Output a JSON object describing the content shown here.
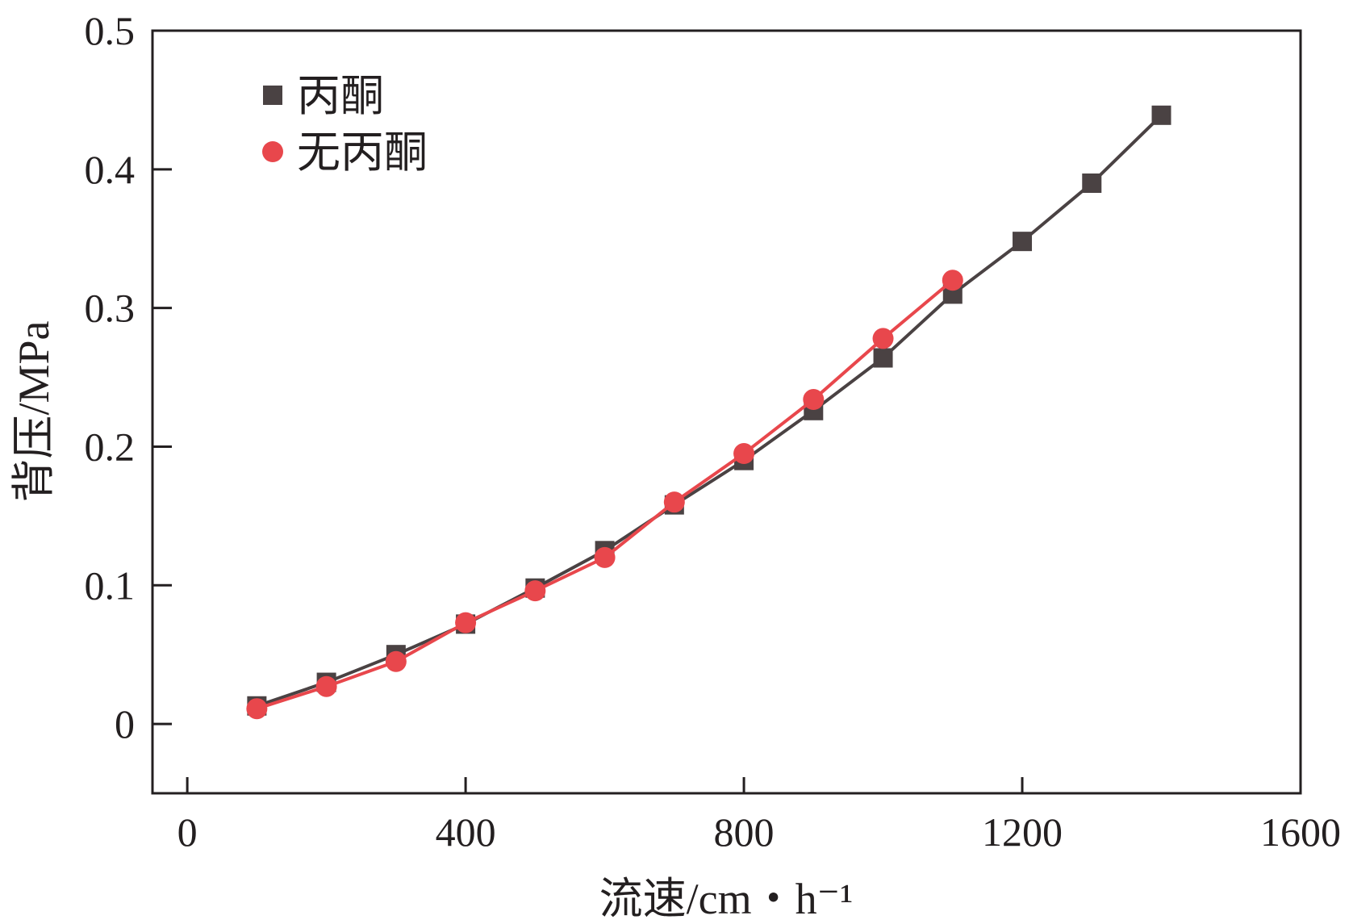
{
  "chart_data": {
    "type": "line",
    "xlabel": "流速/cm・h⁻¹",
    "ylabel": "背压/MPa",
    "xlim": [
      -50,
      1600
    ],
    "ylim": [
      -0.05,
      0.5
    ],
    "xticks": [
      0,
      400,
      800,
      1200,
      1600
    ],
    "yticks": [
      0,
      0.1,
      0.2,
      0.3,
      0.4,
      0.5
    ],
    "xtick_labels": [
      "0",
      "400",
      "800",
      "1200",
      "1600"
    ],
    "ytick_labels": [
      "0",
      "0.1",
      "0.2",
      "0.3",
      "0.4",
      "0.5"
    ],
    "grid": false,
    "legend_position": "top-left",
    "series": [
      {
        "name": "丙酮",
        "marker": "square",
        "color": "#4a4243",
        "x": [
          100,
          200,
          300,
          400,
          500,
          600,
          700,
          800,
          900,
          1000,
          1100,
          1200,
          1300,
          1400
        ],
        "y": [
          0.013,
          0.03,
          0.05,
          0.072,
          0.098,
          0.125,
          0.158,
          0.19,
          0.226,
          0.264,
          0.31,
          0.348,
          0.39,
          0.439
        ]
      },
      {
        "name": "无丙酮",
        "marker": "circle",
        "color": "#e8474c",
        "x": [
          100,
          200,
          300,
          400,
          500,
          600,
          700,
          800,
          900,
          1000,
          1100
        ],
        "y": [
          0.011,
          0.027,
          0.045,
          0.073,
          0.096,
          0.12,
          0.16,
          0.195,
          0.234,
          0.278,
          0.32
        ]
      }
    ]
  }
}
